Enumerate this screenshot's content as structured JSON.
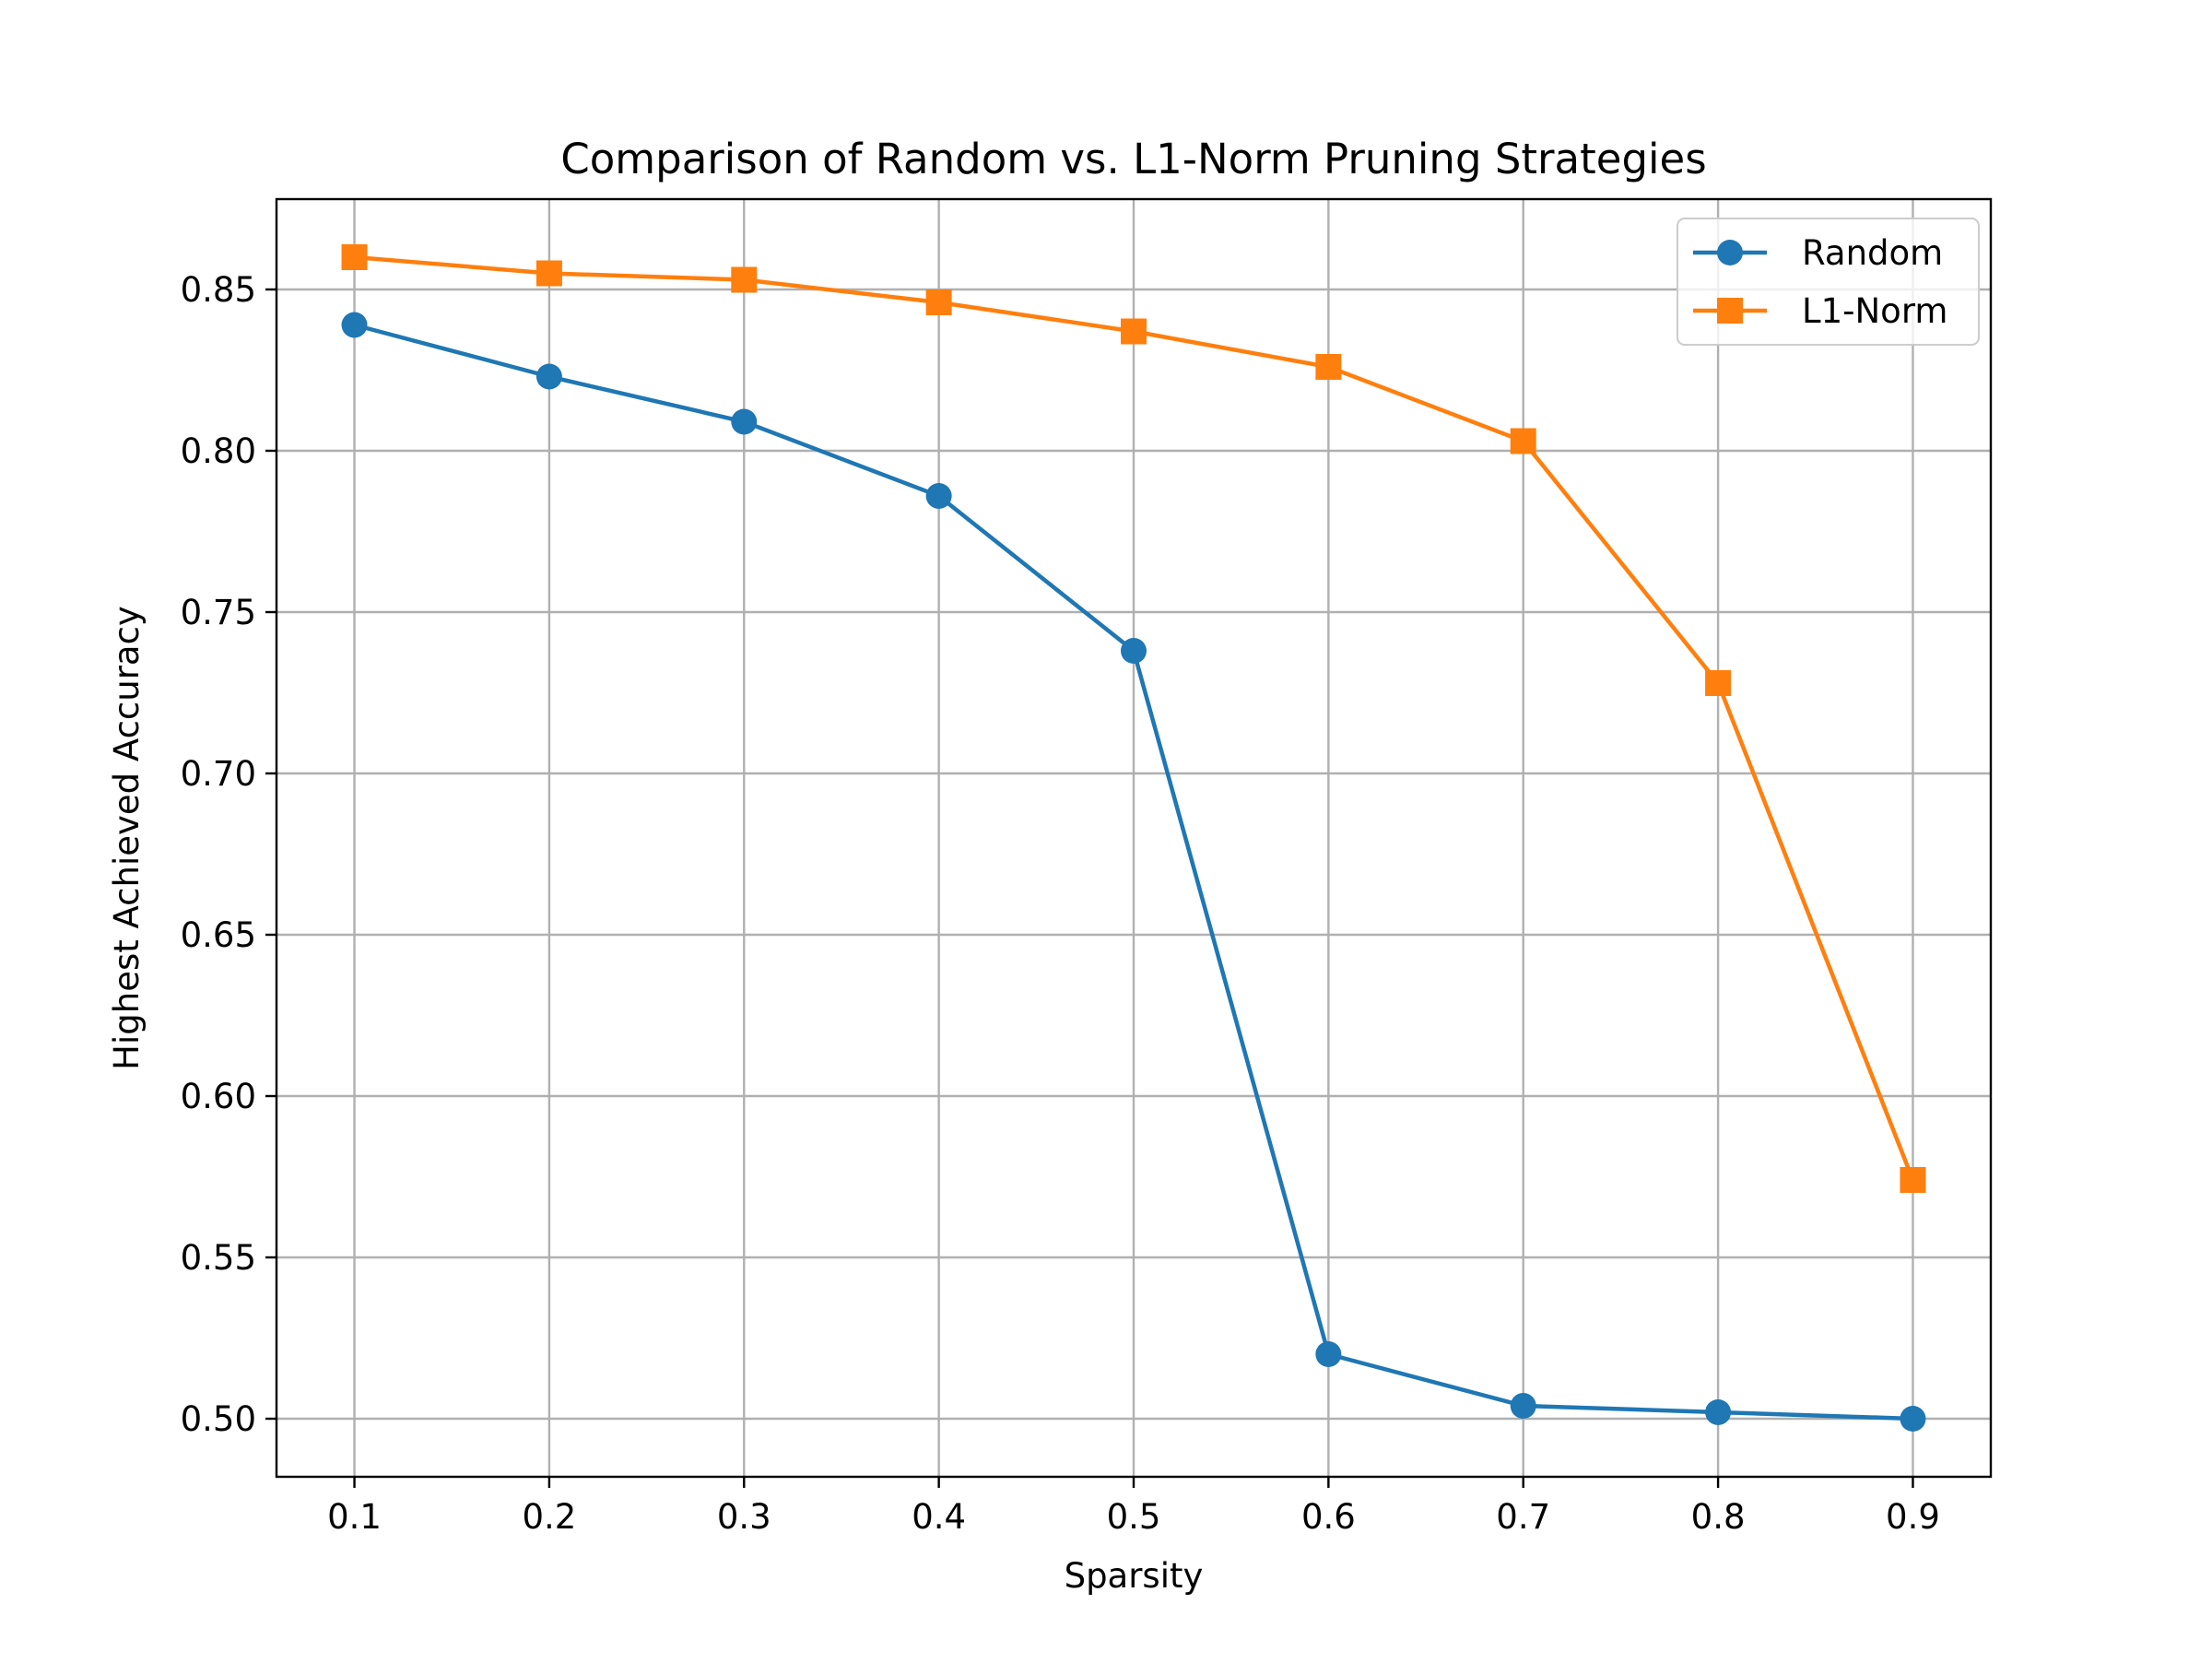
{
  "chart_data": {
    "type": "line",
    "title": "Comparison of Random vs. L1-Norm Pruning Strategies",
    "xlabel": "Sparsity",
    "ylabel": "Highest Achieved Accuracy",
    "x": [
      0.1,
      0.2,
      0.3,
      0.4,
      0.5,
      0.6,
      0.7,
      0.8,
      0.9
    ],
    "xticks": [
      "0.1",
      "0.2",
      "0.3",
      "0.4",
      "0.5",
      "0.6",
      "0.7",
      "0.8",
      "0.9"
    ],
    "yticks": [
      "0.50",
      "0.55",
      "0.60",
      "0.65",
      "0.70",
      "0.75",
      "0.80",
      "0.85"
    ],
    "ytick_values": [
      0.5,
      0.55,
      0.6,
      0.65,
      0.7,
      0.75,
      0.8,
      0.85
    ],
    "xlim": [
      0.06,
      0.94
    ],
    "ylim": [
      0.482,
      0.878
    ],
    "grid": true,
    "legend_position": "top-right",
    "series": [
      {
        "name": "Random",
        "color": "#1f77b4",
        "marker": "circle",
        "values": [
          0.839,
          0.823,
          0.809,
          0.786,
          0.738,
          0.52,
          0.504,
          0.502,
          0.5
        ]
      },
      {
        "name": "L1-Norm",
        "color": "#ff7f0e",
        "marker": "square",
        "values": [
          0.86,
          0.855,
          0.853,
          0.846,
          0.837,
          0.826,
          0.803,
          0.728,
          0.574
        ]
      }
    ]
  }
}
